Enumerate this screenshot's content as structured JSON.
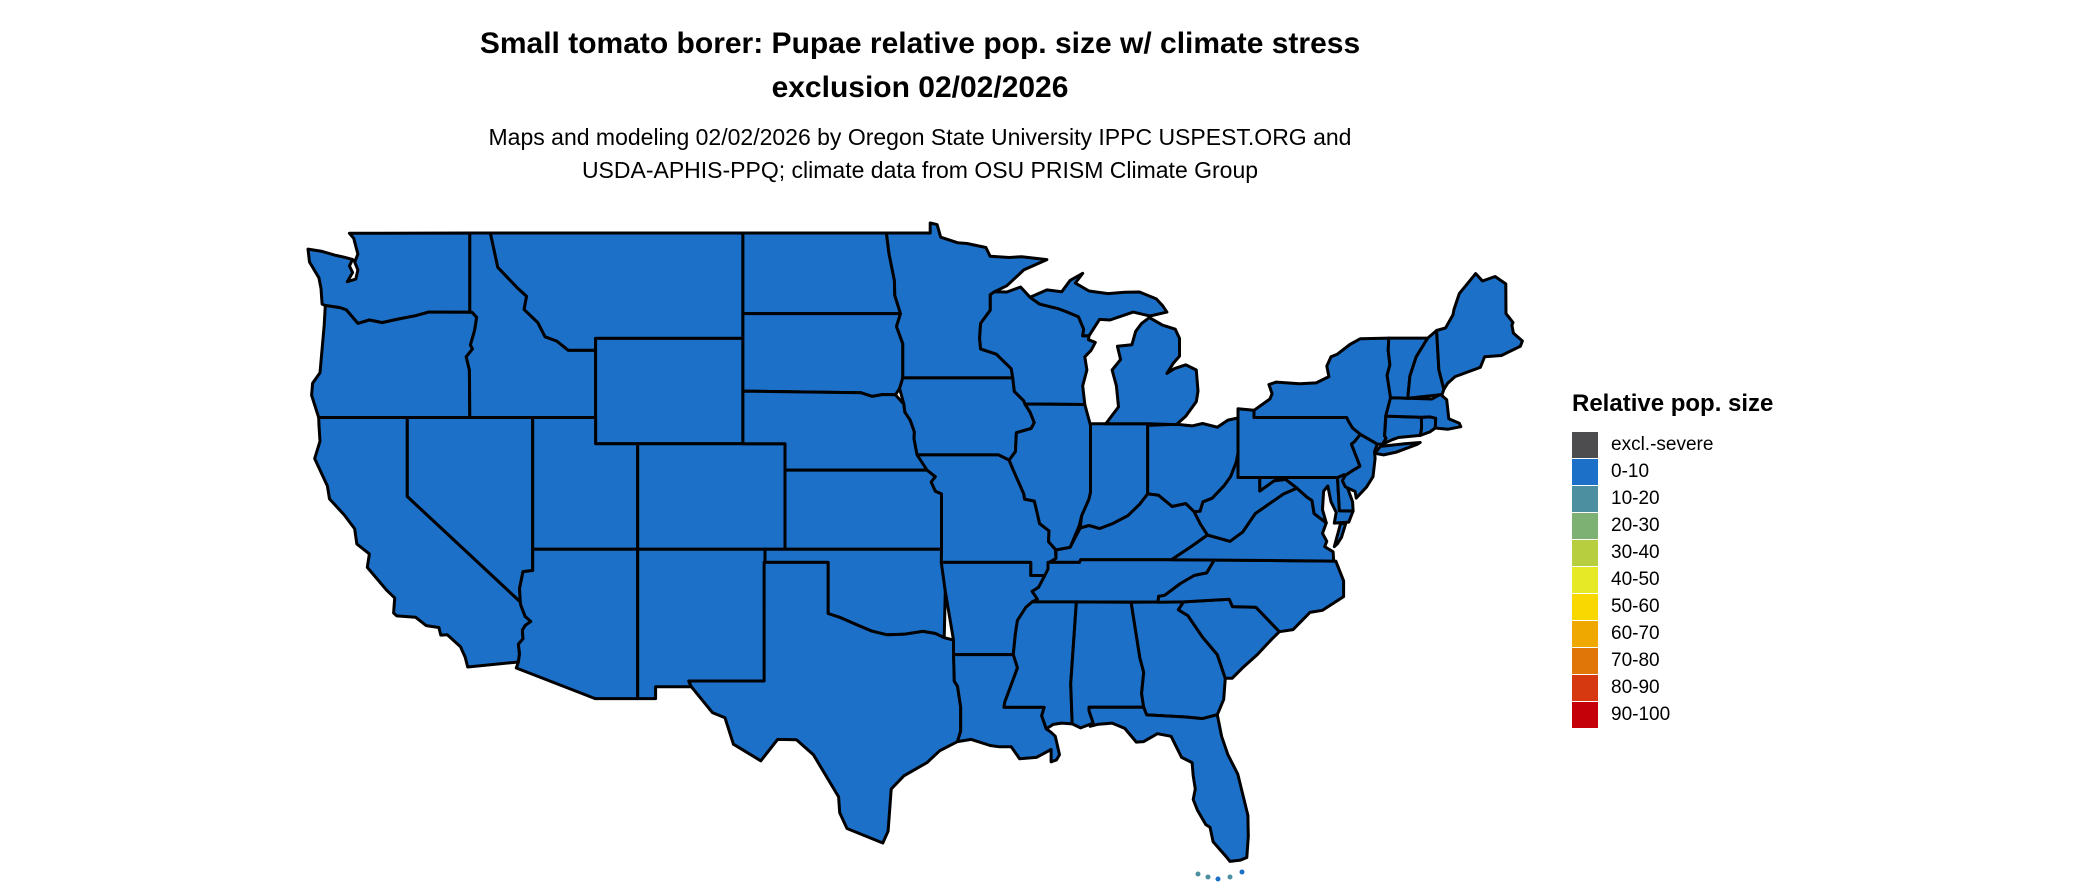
{
  "title": {
    "line1": "Small tomato borer: Pupae relative pop. size w/ climate stress",
    "line2": "exclusion 02/02/2026"
  },
  "subtitle": {
    "line1": "Maps and modeling 02/02/2026 by Oregon State University IPPC USPEST.ORG and",
    "line2": "USDA-APHIS-PPQ; climate data from OSU PRISM Climate Group"
  },
  "legend": {
    "title": "Relative pop. size",
    "entries": [
      {
        "label": "excl.-severe",
        "color": "#4d4d4f"
      },
      {
        "label": "0-10",
        "color": "#1c70c8"
      },
      {
        "label": "10-20",
        "color": "#4b8fa0"
      },
      {
        "label": "20-30",
        "color": "#7db173"
      },
      {
        "label": "30-40",
        "color": "#b7cf3e"
      },
      {
        "label": "40-50",
        "color": "#e6e926"
      },
      {
        "label": "50-60",
        "color": "#f8d800"
      },
      {
        "label": "60-70",
        "color": "#efa800"
      },
      {
        "label": "70-80",
        "color": "#e07508"
      },
      {
        "label": "80-90",
        "color": "#d63810"
      },
      {
        "label": "90-100",
        "color": "#c40008"
      }
    ]
  },
  "map": {
    "region": "Contiguous United States",
    "border_color": "#000000",
    "water_color": "#ffffff",
    "states": [
      {
        "id": "WA",
        "name": "Washington",
        "value": "0-10"
      },
      {
        "id": "OR",
        "name": "Oregon",
        "value": "0-10"
      },
      {
        "id": "CA",
        "name": "California",
        "value": "0-10"
      },
      {
        "id": "NV",
        "name": "Nevada",
        "value": "0-10"
      },
      {
        "id": "ID",
        "name": "Idaho",
        "value": "0-10"
      },
      {
        "id": "MT",
        "name": "Montana",
        "value": "0-10"
      },
      {
        "id": "WY",
        "name": "Wyoming",
        "value": "0-10"
      },
      {
        "id": "UT",
        "name": "Utah",
        "value": "0-10"
      },
      {
        "id": "CO",
        "name": "Colorado",
        "value": "0-10"
      },
      {
        "id": "AZ",
        "name": "Arizona",
        "value": "0-10"
      },
      {
        "id": "NM",
        "name": "New Mexico",
        "value": "0-10"
      },
      {
        "id": "ND",
        "name": "North Dakota",
        "value": "0-10"
      },
      {
        "id": "SD",
        "name": "South Dakota",
        "value": "0-10"
      },
      {
        "id": "NE",
        "name": "Nebraska",
        "value": "0-10"
      },
      {
        "id": "KS",
        "name": "Kansas",
        "value": "0-10"
      },
      {
        "id": "OK",
        "name": "Oklahoma",
        "value": "0-10"
      },
      {
        "id": "TX",
        "name": "Texas",
        "value": "0-10"
      },
      {
        "id": "MN",
        "name": "Minnesota",
        "value": "0-10"
      },
      {
        "id": "IA",
        "name": "Iowa",
        "value": "0-10"
      },
      {
        "id": "MO",
        "name": "Missouri",
        "value": "0-10"
      },
      {
        "id": "AR",
        "name": "Arkansas",
        "value": "0-10"
      },
      {
        "id": "LA",
        "name": "Louisiana",
        "value": "0-10"
      },
      {
        "id": "WI",
        "name": "Wisconsin",
        "value": "0-10"
      },
      {
        "id": "IL",
        "name": "Illinois",
        "value": "0-10"
      },
      {
        "id": "IN",
        "name": "Indiana",
        "value": "0-10"
      },
      {
        "id": "OH",
        "name": "Ohio",
        "value": "0-10"
      },
      {
        "id": "MI",
        "name": "Michigan",
        "value": "0-10"
      },
      {
        "id": "KY",
        "name": "Kentucky",
        "value": "0-10"
      },
      {
        "id": "TN",
        "name": "Tennessee",
        "value": "0-10"
      },
      {
        "id": "MS",
        "name": "Mississippi",
        "value": "0-10"
      },
      {
        "id": "AL",
        "name": "Alabama",
        "value": "0-10"
      },
      {
        "id": "GA",
        "name": "Georgia",
        "value": "0-10"
      },
      {
        "id": "FL",
        "name": "Florida",
        "value": "0-10"
      },
      {
        "id": "SC",
        "name": "South Carolina",
        "value": "0-10"
      },
      {
        "id": "NC",
        "name": "North Carolina",
        "value": "0-10"
      },
      {
        "id": "VA",
        "name": "Virginia",
        "value": "0-10"
      },
      {
        "id": "WV",
        "name": "West Virginia",
        "value": "0-10"
      },
      {
        "id": "MD",
        "name": "Maryland",
        "value": "0-10"
      },
      {
        "id": "DE",
        "name": "Delaware",
        "value": "0-10"
      },
      {
        "id": "PA",
        "name": "Pennsylvania",
        "value": "0-10"
      },
      {
        "id": "NJ",
        "name": "New Jersey",
        "value": "0-10"
      },
      {
        "id": "NY",
        "name": "New York",
        "value": "0-10"
      },
      {
        "id": "CT",
        "name": "Connecticut",
        "value": "0-10"
      },
      {
        "id": "RI",
        "name": "Rhode Island",
        "value": "0-10"
      },
      {
        "id": "MA",
        "name": "Massachusetts",
        "value": "0-10"
      },
      {
        "id": "VT",
        "name": "Vermont",
        "value": "0-10"
      },
      {
        "id": "NH",
        "name": "New Hampshire",
        "value": "0-10"
      },
      {
        "id": "ME",
        "name": "Maine",
        "value": "0-10"
      }
    ]
  },
  "chart_data": {
    "type": "choropleth-map",
    "title": "Small tomato borer: Pupae relative pop. size w/ climate stress exclusion 02/02/2026",
    "legend_title": "Relative pop. size",
    "categories": [
      "excl.-severe",
      "0-10",
      "10-20",
      "20-30",
      "30-40",
      "40-50",
      "50-60",
      "60-70",
      "70-80",
      "80-90",
      "90-100"
    ],
    "category_colors": [
      "#4d4d4f",
      "#1c70c8",
      "#4b8fa0",
      "#7db173",
      "#b7cf3e",
      "#e6e926",
      "#f8d800",
      "#efa800",
      "#e07508",
      "#d63810",
      "#c40008"
    ],
    "value_for_every_state": "0-10"
  }
}
